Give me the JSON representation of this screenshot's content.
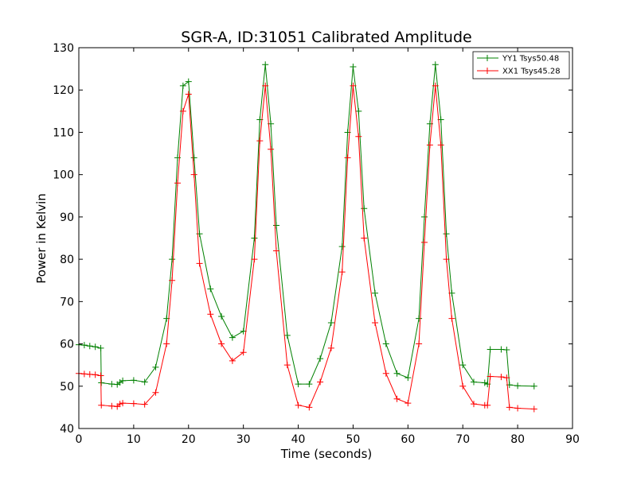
{
  "chart_data": {
    "type": "line",
    "title": "SGR-A, ID:31051 Calibrated Amplitude",
    "xlabel": "Time (seconds)",
    "ylabel": "Power in Kelvin",
    "xlim": [
      0,
      90
    ],
    "ylim": [
      40,
      130
    ],
    "xticks": [
      0,
      10,
      20,
      30,
      40,
      50,
      60,
      70,
      80,
      90
    ],
    "yticks": [
      40,
      50,
      60,
      70,
      80,
      90,
      100,
      110,
      120,
      130
    ],
    "grid": false,
    "legend_position": "top-right",
    "marker": "+",
    "x": [
      0,
      1,
      2,
      3,
      4,
      4.1,
      6,
      7,
      7.5,
      8,
      10,
      12,
      14,
      16,
      17,
      18,
      19,
      20,
      21,
      22,
      24,
      26,
      28,
      30,
      32,
      33,
      34,
      35,
      36,
      38,
      40,
      42,
      44,
      46,
      48,
      49,
      50,
      51,
      52,
      54,
      56,
      58,
      60,
      62,
      63,
      64,
      65,
      66,
      67,
      68,
      70,
      72,
      74,
      74.5,
      75,
      77,
      78,
      78.5,
      80,
      83
    ],
    "series": [
      {
        "name": "YY1 Tsys50.48",
        "color": "#008000",
        "values": [
          59.8,
          59.7,
          59.5,
          59.3,
          59.0,
          50.8,
          50.5,
          50.4,
          50.9,
          51.3,
          51.4,
          51.0,
          54.5,
          66.0,
          80.0,
          104.0,
          121.0,
          122.0,
          104.0,
          86.0,
          73.0,
          66.5,
          61.5,
          63.0,
          85.0,
          113.0,
          126.0,
          112.0,
          88.0,
          62.0,
          50.5,
          50.5,
          56.5,
          65.0,
          83.0,
          110.0,
          125.5,
          115.0,
          92.0,
          72.0,
          60.0,
          53.0,
          52.0,
          66.0,
          90.0,
          112.0,
          126.0,
          113.0,
          86.0,
          72.0,
          55.0,
          51.0,
          50.8,
          50.5,
          58.7,
          58.7,
          58.6,
          50.3,
          50.1,
          50.0
        ]
      },
      {
        "name": "XX1 Tsys45.28",
        "color": "#ff0000",
        "values": [
          53.0,
          52.9,
          52.8,
          52.7,
          52.5,
          45.5,
          45.3,
          45.2,
          45.8,
          46.0,
          45.9,
          45.7,
          48.5,
          60.0,
          75.0,
          98.0,
          115.0,
          119.0,
          100.0,
          79.0,
          67.0,
          60.0,
          56.0,
          58.0,
          80.0,
          108.0,
          121.0,
          106.0,
          82.0,
          55.0,
          45.5,
          45.0,
          51.0,
          59.0,
          77.0,
          104.0,
          121.0,
          109.0,
          85.0,
          65.0,
          53.0,
          47.0,
          46.0,
          60.0,
          84.0,
          107.0,
          121.0,
          107.0,
          80.0,
          66.0,
          50.0,
          45.8,
          45.5,
          45.5,
          52.3,
          52.2,
          52.0,
          45.0,
          44.8,
          44.6
        ]
      }
    ]
  }
}
